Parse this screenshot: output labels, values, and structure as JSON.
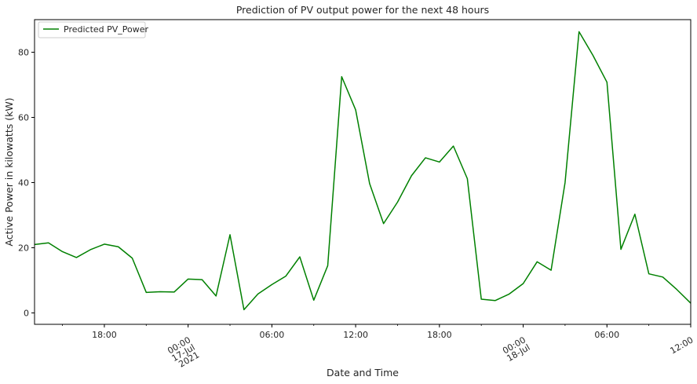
{
  "chart_data": {
    "type": "line",
    "title": "Prediction of PV output power for the next 48 hours",
    "xlabel": "Date and Time",
    "ylabel": "Active Power in kilowatts (kW)",
    "legend_position": "top-left",
    "grid": false,
    "xlim": [
      "2021-07-16T13:00",
      "2021-07-18T12:00"
    ],
    "ylim": [
      -3.5,
      90
    ],
    "y_ticks": [
      0,
      20,
      40,
      60,
      80
    ],
    "x_ticks": [
      {
        "at": "2021-07-16T18:00",
        "label": "18:00",
        "rotated": false
      },
      {
        "at": "2021-07-17T00:00",
        "label": "00:00\n17-Jul\n2021",
        "rotated": true
      },
      {
        "at": "2021-07-17T06:00",
        "label": "06:00",
        "rotated": false
      },
      {
        "at": "2021-07-17T12:00",
        "label": "12:00",
        "rotated": false
      },
      {
        "at": "2021-07-17T18:00",
        "label": "18:00",
        "rotated": false
      },
      {
        "at": "2021-07-18T00:00",
        "label": "00:00\n18-Jul",
        "rotated": true
      },
      {
        "at": "2021-07-18T06:00",
        "label": "06:00",
        "rotated": false
      },
      {
        "at": "2021-07-18T12:00",
        "label": "12:00",
        "rotated": true
      }
    ],
    "series": [
      {
        "name": "Predicted PV_Power",
        "color": "#008000",
        "points": [
          [
            "2021-07-16T13:00",
            21.0
          ],
          [
            "2021-07-16T14:00",
            21.5
          ],
          [
            "2021-07-16T15:00",
            18.8
          ],
          [
            "2021-07-16T16:00",
            17.0
          ],
          [
            "2021-07-16T17:00",
            19.4
          ],
          [
            "2021-07-16T18:00",
            21.1
          ],
          [
            "2021-07-16T19:00",
            20.3
          ],
          [
            "2021-07-16T20:00",
            16.8
          ],
          [
            "2021-07-16T21:00",
            6.3
          ],
          [
            "2021-07-16T22:00",
            6.5
          ],
          [
            "2021-07-16T23:00",
            6.4
          ],
          [
            "2021-07-17T00:00",
            10.4
          ],
          [
            "2021-07-17T01:00",
            10.2
          ],
          [
            "2021-07-17T02:00",
            5.2
          ],
          [
            "2021-07-17T03:00",
            24.0
          ],
          [
            "2021-07-17T04:00",
            1.0
          ],
          [
            "2021-07-17T05:00",
            5.8
          ],
          [
            "2021-07-17T06:00",
            8.7
          ],
          [
            "2021-07-17T07:00",
            11.3
          ],
          [
            "2021-07-17T08:00",
            17.2
          ],
          [
            "2021-07-17T09:00",
            3.9
          ],
          [
            "2021-07-17T10:00",
            14.5
          ],
          [
            "2021-07-17T11:00",
            72.5
          ],
          [
            "2021-07-17T12:00",
            62.3
          ],
          [
            "2021-07-17T13:00",
            39.7
          ],
          [
            "2021-07-17T14:00",
            27.4
          ],
          [
            "2021-07-17T15:00",
            34.0
          ],
          [
            "2021-07-17T16:00",
            42.1
          ],
          [
            "2021-07-17T17:00",
            47.6
          ],
          [
            "2021-07-17T18:00",
            46.3
          ],
          [
            "2021-07-17T19:00",
            51.2
          ],
          [
            "2021-07-17T20:00",
            41.2
          ],
          [
            "2021-07-17T21:00",
            4.2
          ],
          [
            "2021-07-17T22:00",
            3.8
          ],
          [
            "2021-07-17T23:00",
            5.8
          ],
          [
            "2021-07-18T00:00",
            9.0
          ],
          [
            "2021-07-18T01:00",
            15.7
          ],
          [
            "2021-07-18T02:00",
            13.1
          ],
          [
            "2021-07-18T03:00",
            40.0
          ],
          [
            "2021-07-18T04:00",
            86.3
          ],
          [
            "2021-07-18T05:00",
            79.0
          ],
          [
            "2021-07-18T06:00",
            70.8
          ],
          [
            "2021-07-18T07:00",
            19.5
          ],
          [
            "2021-07-18T08:00",
            30.3
          ],
          [
            "2021-07-18T09:00",
            12.0
          ],
          [
            "2021-07-18T10:00",
            11.0
          ],
          [
            "2021-07-18T11:00",
            7.2
          ],
          [
            "2021-07-18T12:00",
            3.0
          ]
        ]
      }
    ]
  }
}
